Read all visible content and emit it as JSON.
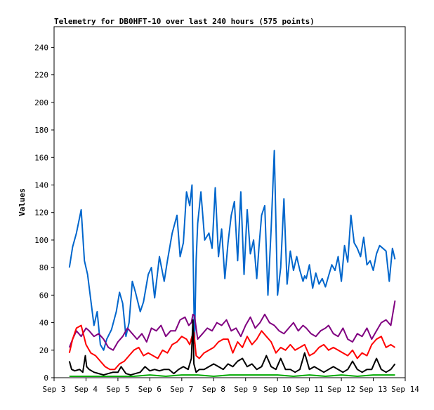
{
  "chart_data": {
    "type": "line",
    "title": "Telemetry for DB0HFT-10 over last 240 hours (575 points)",
    "xlabel": "",
    "ylabel": "Values",
    "xlim": [
      "Sep 3",
      "Sep 14"
    ],
    "x_ticks": [
      "Sep 3",
      "Sep 4",
      "Sep 5",
      "Sep 6",
      "Sep 7",
      "Sep 8",
      "Sep 9",
      "Sep 10",
      "Sep 11",
      "Sep 12",
      "Sep 13",
      "Sep 14"
    ],
    "ylim": [
      0,
      255
    ],
    "y_ticks": [
      0,
      20,
      40,
      60,
      80,
      100,
      120,
      140,
      160,
      180,
      200,
      220,
      240
    ],
    "grid": false,
    "legend": "none",
    "x_unit": "days since Sep 3 00:00",
    "series": [
      {
        "color": "#0066cc",
        "x": [
          0.48,
          0.58,
          0.7,
          0.85,
          0.95,
          1.05,
          1.12,
          1.25,
          1.35,
          1.45,
          1.55,
          1.65,
          1.8,
          1.95,
          2.05,
          2.15,
          2.25,
          2.35,
          2.45,
          2.55,
          2.7,
          2.8,
          2.95,
          3.05,
          3.15,
          3.3,
          3.45,
          3.55,
          3.7,
          3.85,
          3.95,
          4.05,
          4.15,
          4.25,
          4.32,
          4.4,
          4.45,
          4.5,
          4.6,
          4.72,
          4.85,
          4.95,
          5.05,
          5.15,
          5.25,
          5.35,
          5.45,
          5.55,
          5.65,
          5.75,
          5.85,
          5.95,
          6.05,
          6.15,
          6.25,
          6.35,
          6.42,
          6.5,
          6.6,
          6.7,
          6.8,
          6.9,
          7.0,
          7.1,
          7.2,
          7.3,
          7.4,
          7.5,
          7.6,
          7.7,
          7.8,
          7.85,
          7.9,
          8.0,
          8.1,
          8.2,
          8.3,
          8.4,
          8.5,
          8.6,
          8.7,
          8.8,
          8.9,
          9.0,
          9.1,
          9.2,
          9.3,
          9.4,
          9.5,
          9.6,
          9.7,
          9.8,
          9.9,
          10.0,
          10.1,
          10.2,
          10.3,
          10.4,
          10.5,
          10.6,
          10.68
        ],
        "values": [
          80,
          95,
          105,
          122,
          85,
          75,
          62,
          38,
          48,
          24,
          20,
          28,
          35,
          48,
          62,
          54,
          30,
          40,
          70,
          62,
          48,
          55,
          75,
          80,
          58,
          88,
          70,
          85,
          105,
          118,
          88,
          98,
          135,
          125,
          140,
          25,
          85,
          112,
          135,
          100,
          105,
          94,
          138,
          88,
          108,
          72,
          98,
          118,
          128,
          85,
          135,
          75,
          122,
          90,
          100,
          72,
          95,
          118,
          125,
          60,
          108,
          165,
          60,
          80,
          130,
          68,
          92,
          78,
          88,
          78,
          70,
          74,
          72,
          82,
          65,
          76,
          68,
          72,
          66,
          74,
          82,
          78,
          88,
          70,
          96,
          84,
          118,
          98,
          94,
          88,
          102,
          82,
          85,
          78,
          90,
          96,
          94,
          92,
          70,
          94,
          86
        ]
      },
      {
        "color": "#800080",
        "x": [
          0.48,
          0.58,
          0.7,
          0.85,
          1.0,
          1.1,
          1.25,
          1.4,
          1.55,
          1.7,
          1.85,
          2.0,
          2.15,
          2.3,
          2.45,
          2.6,
          2.75,
          2.9,
          3.05,
          3.2,
          3.35,
          3.5,
          3.65,
          3.8,
          3.95,
          4.1,
          4.22,
          4.3,
          4.35,
          4.4,
          4.45,
          4.5,
          4.65,
          4.8,
          4.95,
          5.1,
          5.25,
          5.4,
          5.55,
          5.7,
          5.85,
          6.0,
          6.15,
          6.3,
          6.45,
          6.6,
          6.75,
          6.9,
          7.05,
          7.2,
          7.35,
          7.5,
          7.65,
          7.8,
          7.9,
          8.05,
          8.2,
          8.35,
          8.5,
          8.6,
          8.75,
          8.9,
          9.05,
          9.2,
          9.35,
          9.5,
          9.65,
          9.8,
          9.95,
          10.1,
          10.25,
          10.4,
          10.55,
          10.68
        ],
        "values": [
          22,
          28,
          34,
          30,
          36,
          34,
          30,
          32,
          28,
          22,
          20,
          26,
          30,
          36,
          32,
          28,
          32,
          26,
          36,
          34,
          38,
          30,
          34,
          34,
          42,
          44,
          38,
          40,
          46,
          45,
          36,
          28,
          32,
          36,
          34,
          40,
          38,
          42,
          34,
          36,
          30,
          38,
          44,
          36,
          40,
          46,
          40,
          38,
          34,
          32,
          36,
          40,
          34,
          38,
          36,
          32,
          30,
          34,
          36,
          38,
          32,
          30,
          36,
          28,
          26,
          32,
          30,
          36,
          28,
          34,
          40,
          42,
          38,
          56
        ]
      },
      {
        "color": "#ff0000",
        "x": [
          0.48,
          0.58,
          0.7,
          0.85,
          1.0,
          1.15,
          1.3,
          1.45,
          1.6,
          1.75,
          1.9,
          2.05,
          2.2,
          2.35,
          2.5,
          2.65,
          2.8,
          2.95,
          3.1,
          3.25,
          3.4,
          3.55,
          3.7,
          3.85,
          4.0,
          4.15,
          4.25,
          4.32,
          4.38,
          4.45,
          4.55,
          4.7,
          4.85,
          5.0,
          5.15,
          5.3,
          5.45,
          5.6,
          5.75,
          5.9,
          6.05,
          6.2,
          6.35,
          6.5,
          6.65,
          6.8,
          6.95,
          7.1,
          7.25,
          7.4,
          7.55,
          7.7,
          7.85,
          8.0,
          8.15,
          8.3,
          8.45,
          8.6,
          8.75,
          8.9,
          9.05,
          9.2,
          9.35,
          9.5,
          9.65,
          9.8,
          9.95,
          10.1,
          10.25,
          10.4,
          10.55,
          10.68
        ],
        "values": [
          18,
          28,
          36,
          38,
          24,
          18,
          16,
          12,
          8,
          6,
          6,
          10,
          12,
          16,
          20,
          22,
          16,
          18,
          16,
          14,
          20,
          18,
          24,
          26,
          30,
          28,
          24,
          30,
          33,
          16,
          14,
          18,
          20,
          22,
          26,
          28,
          28,
          18,
          26,
          22,
          30,
          24,
          28,
          34,
          30,
          26,
          18,
          22,
          20,
          24,
          20,
          22,
          24,
          16,
          18,
          22,
          24,
          20,
          22,
          20,
          18,
          16,
          20,
          14,
          18,
          16,
          24,
          28,
          30,
          22,
          24,
          22
        ]
      },
      {
        "color": "#000000",
        "x": [
          0.48,
          0.55,
          0.65,
          0.8,
          0.9,
          0.98,
          1.02,
          1.1,
          1.25,
          1.4,
          1.55,
          1.7,
          1.85,
          2.0,
          2.1,
          2.25,
          2.4,
          2.55,
          2.7,
          2.85,
          3.0,
          3.15,
          3.3,
          3.45,
          3.6,
          3.75,
          3.9,
          4.05,
          4.2,
          4.3,
          4.35,
          4.38,
          4.45,
          4.55,
          4.7,
          4.85,
          5.0,
          5.15,
          5.3,
          5.45,
          5.6,
          5.75,
          5.9,
          6.05,
          6.2,
          6.35,
          6.5,
          6.65,
          6.8,
          6.95,
          7.1,
          7.25,
          7.4,
          7.55,
          7.7,
          7.85,
          8.0,
          8.15,
          8.3,
          8.45,
          8.6,
          8.75,
          8.9,
          9.05,
          9.2,
          9.35,
          9.5,
          9.65,
          9.8,
          9.95,
          10.1,
          10.25,
          10.4,
          10.55,
          10.68
        ],
        "values": [
          12,
          6,
          5,
          6,
          4,
          16,
          8,
          6,
          4,
          3,
          2,
          3,
          4,
          4,
          8,
          3,
          2,
          3,
          4,
          8,
          5,
          6,
          5,
          6,
          6,
          3,
          6,
          8,
          6,
          14,
          42,
          10,
          4,
          6,
          6,
          8,
          10,
          8,
          6,
          10,
          8,
          12,
          14,
          8,
          10,
          6,
          8,
          16,
          8,
          6,
          14,
          6,
          6,
          4,
          6,
          18,
          6,
          8,
          6,
          4,
          6,
          8,
          6,
          4,
          6,
          12,
          6,
          4,
          6,
          6,
          14,
          6,
          4,
          6,
          10
        ]
      },
      {
        "color": "#00aa00",
        "x": [
          0.48,
          1.0,
          1.5,
          2.0,
          2.5,
          3.0,
          3.5,
          4.0,
          4.5,
          5.0,
          5.5,
          6.0,
          6.5,
          7.0,
          7.5,
          8.0,
          8.5,
          9.0,
          9.5,
          10.0,
          10.68
        ],
        "values": [
          1,
          1,
          1,
          1,
          1,
          2,
          1,
          2,
          2,
          1,
          2,
          2,
          2,
          2,
          1,
          2,
          1,
          2,
          1,
          2,
          2
        ]
      }
    ]
  }
}
